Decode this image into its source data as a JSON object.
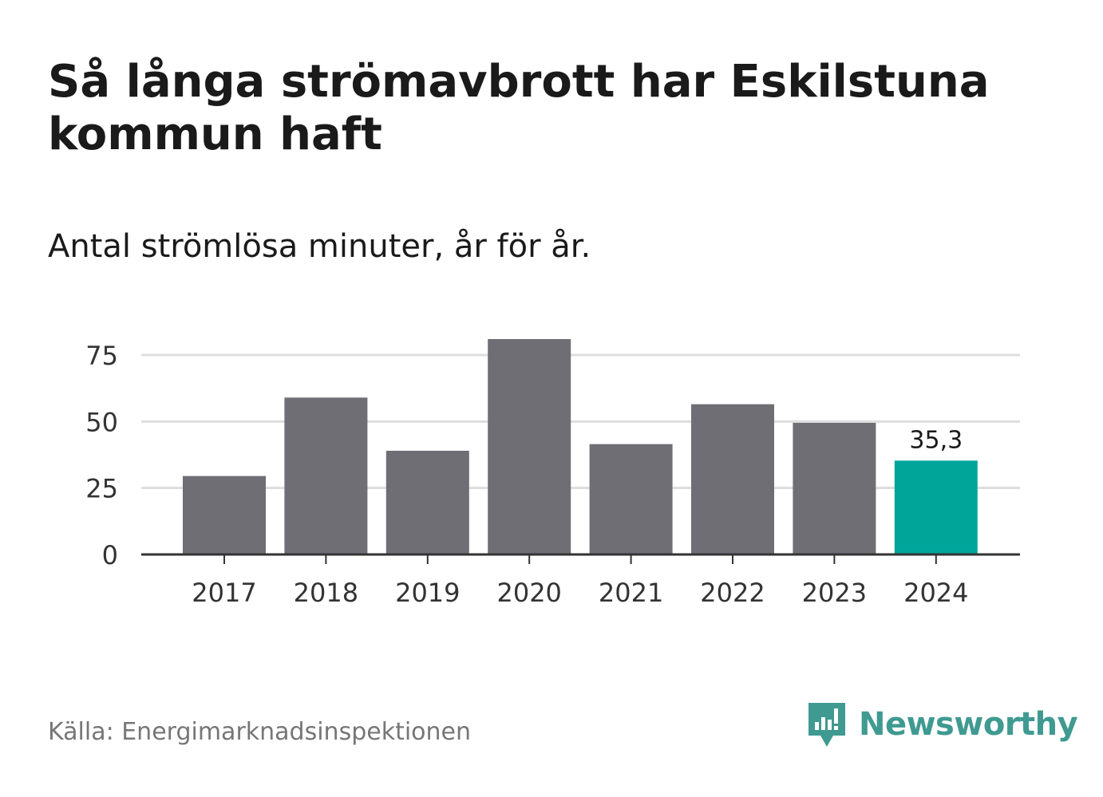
{
  "title": "Så långa strömavbrott har Eskilstuna kommun haft",
  "subtitle": "Antal strömlösa minuter, år för år.",
  "source": "Källa: Energimarknadsinspektionen",
  "brand": {
    "name": "Newsworthy",
    "color": "#3f9a91",
    "icon": "newsworthy-logo-icon"
  },
  "colors": {
    "bar": "#6f6e75",
    "highlight": "#00a59a",
    "grid": "#dddddd",
    "axis": "#333333",
    "text": "#333333"
  },
  "chart_data": {
    "type": "bar",
    "categories": [
      "2017",
      "2018",
      "2019",
      "2020",
      "2021",
      "2022",
      "2023",
      "2024"
    ],
    "values": [
      29.5,
      59,
      39,
      81,
      41.5,
      56.5,
      49.5,
      35.3
    ],
    "highlight_index": 7,
    "data_labels": [
      {
        "index": 7,
        "text": "35,3"
      }
    ],
    "yticks": [
      0,
      25,
      50,
      75
    ],
    "ylim": [
      0,
      90
    ],
    "grid": true,
    "title": "Så långa strömavbrott har Eskilstuna kommun haft",
    "xlabel": "",
    "ylabel": ""
  }
}
